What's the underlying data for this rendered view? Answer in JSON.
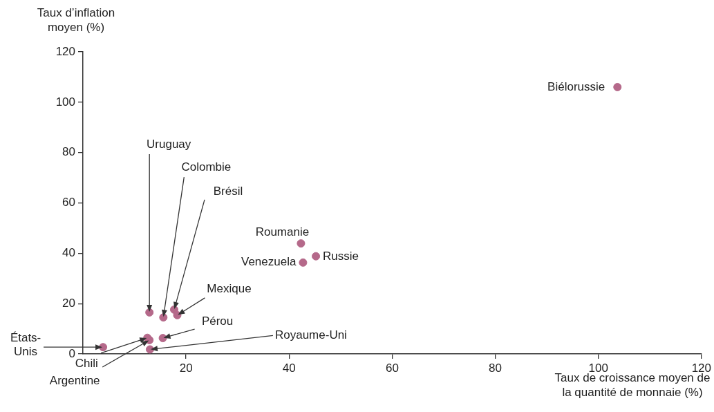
{
  "chart_data": {
    "type": "scatter",
    "xlabel": "Taux de croissance moyen de la quantité de monnaie (%)",
    "ylabel": "Taux d’inflation moyen (%)",
    "x": [
      103.7,
      42.3,
      45.2,
      42.7,
      12.9,
      15.6,
      17.7,
      18.3,
      15.5,
      13.0,
      3.9,
      12.5,
      12.9
    ],
    "series": [
      {
        "color": "#b5698a",
        "values": [
          106,
          43.9,
          38.8,
          36.3,
          16.5,
          14.5,
          17.6,
          15.4,
          6.3,
          1.8,
          2.7,
          6.4,
          5.5
        ]
      }
    ],
    "xlim": [
      0,
      120
    ],
    "xticks": [
      20,
      40,
      60,
      80,
      100,
      120
    ],
    "ylim": [
      0,
      120
    ],
    "yticks": [
      0,
      20,
      40,
      60,
      80,
      100,
      120
    ],
    "grid": false,
    "legend": false,
    "marker": "circle",
    "annotations": [
      {
        "text": "Biélorussie",
        "x": 103.7,
        "y": 106
      },
      {
        "text": "Roumanie",
        "x": 42.3,
        "y": 43.9
      },
      {
        "text": "Russie",
        "x": 45.2,
        "y": 38.8
      },
      {
        "text": "Venezuela",
        "x": 42.7,
        "y": 36.3
      },
      {
        "text": "Uruguay",
        "x": 12.9,
        "y": 16.5
      },
      {
        "text": "Colombie",
        "x": 15.6,
        "y": 14.5
      },
      {
        "text": "Brésil",
        "x": 17.7,
        "y": 17.6
      },
      {
        "text": "Mexique",
        "x": 18.3,
        "y": 15.4
      },
      {
        "text": "Pérou",
        "x": 15.5,
        "y": 6.3
      },
      {
        "text": "Royaume-Uni",
        "x": 13.0,
        "y": 1.8
      },
      {
        "text": "États-Unis",
        "x": 3.9,
        "y": 2.7
      },
      {
        "text": "Chili",
        "x": 12.5,
        "y": 6.4
      },
      {
        "text": "Argentine",
        "x": 12.9,
        "y": 5.5
      }
    ]
  }
}
